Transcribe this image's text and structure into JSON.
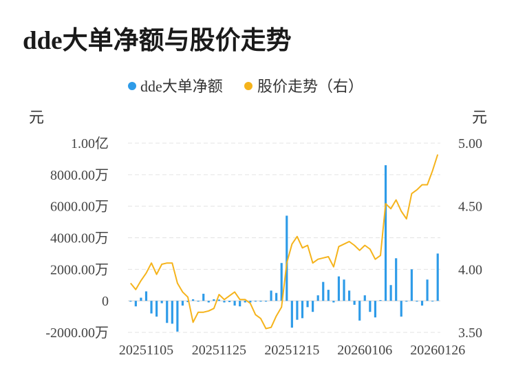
{
  "title": "dde大单净额与股价走势",
  "chart_data": {
    "type": "bar+line",
    "legend": {
      "placement": "top-center",
      "items": [
        "dde大单净额",
        "股价走势（右）"
      ]
    },
    "series": [
      {
        "name": "dde大单净额",
        "type": "bar",
        "axis": "left",
        "color": "#2e9be8"
      },
      {
        "name": "股价走势（右）",
        "type": "line",
        "axis": "right",
        "color": "#f5b31b"
      }
    ],
    "left_axis": {
      "unit": "元",
      "ylim": [
        -2000,
        10000
      ],
      "ticks": [
        -2000,
        0,
        2000,
        4000,
        6000,
        8000,
        10000
      ],
      "tick_labels": [
        "-2000.00万",
        "0",
        "2000.00万",
        "4000.00万",
        "6000.00万",
        "8000.00万",
        "1.00亿"
      ]
    },
    "right_axis": {
      "unit": "元",
      "ylim": [
        3.5,
        5.0
      ],
      "ticks": [
        3.5,
        4.0,
        4.5,
        5.0
      ],
      "tick_labels": [
        "3.50",
        "4.00",
        "4.50",
        "5.00"
      ]
    },
    "x_tick_labels": [
      "20251105",
      "20251125",
      "20251215",
      "20260106",
      "20260126"
    ],
    "x_tick_index": [
      3,
      17,
      31,
      45,
      59
    ],
    "grid": "horizontal dashed",
    "dde_values": [
      -50,
      -350,
      200,
      600,
      -800,
      -1000,
      -150,
      -1400,
      -1450,
      -1950,
      -300,
      -80,
      100,
      -50,
      450,
      -100,
      100,
      80,
      -100,
      -80,
      -300,
      -350,
      -100,
      -100,
      -50,
      -50,
      -50,
      650,
      500,
      2400,
      5400,
      -1700,
      -1200,
      -1100,
      -400,
      -700,
      350,
      1200,
      700,
      -100,
      1550,
      1350,
      650,
      -250,
      -1250,
      350,
      -700,
      -1050,
      50,
      8600,
      1000,
      2700,
      -1000,
      -50,
      2000,
      -50,
      -300,
      1350,
      0,
      3000
    ],
    "price_values": [
      3.89,
      3.84,
      3.91,
      3.97,
      4.05,
      3.96,
      4.04,
      4.05,
      4.05,
      3.89,
      3.82,
      3.78,
      3.58,
      3.66,
      3.66,
      3.67,
      3.69,
      3.8,
      3.76,
      3.79,
      3.82,
      3.76,
      3.76,
      3.73,
      3.64,
      3.61,
      3.53,
      3.54,
      3.63,
      3.7,
      4.05,
      4.2,
      4.26,
      4.17,
      4.19,
      4.05,
      4.08,
      4.09,
      4.1,
      4.02,
      4.18,
      4.2,
      4.22,
      4.19,
      4.15,
      4.19,
      4.16,
      4.08,
      4.11,
      4.52,
      4.48,
      4.55,
      4.46,
      4.4,
      4.6,
      4.63,
      4.67,
      4.67,
      4.78,
      4.91
    ]
  }
}
